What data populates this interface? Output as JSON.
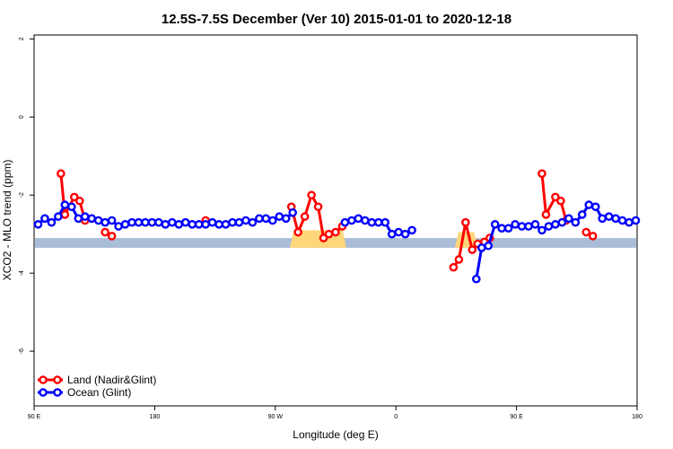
{
  "chart_data": {
    "type": "line",
    "title": "12.5S-7.5S December (Ver 10)   2015-01-01 to 2020-12-18",
    "xlabel": "Longitude (deg E)",
    "ylabel": "XCO2 - MLO trend (ppm)",
    "xlim": [
      90,
      540
    ],
    "ylim": [
      -7.4,
      2.1
    ],
    "x_ticks": [
      {
        "value": 90,
        "label": "90 E"
      },
      {
        "value": 180,
        "label": "180"
      },
      {
        "value": 270,
        "label": "90 W"
      },
      {
        "value": 360,
        "label": "0"
      },
      {
        "value": 450,
        "label": "90 E"
      },
      {
        "value": 540,
        "label": "180"
      }
    ],
    "y_ticks": [
      {
        "value": 2,
        "label": "2"
      },
      {
        "value": 0,
        "label": "0"
      },
      {
        "value": -2,
        "label": "-2"
      },
      {
        "value": -4,
        "label": "-4"
      },
      {
        "value": -6,
        "label": "-6"
      }
    ],
    "legend_position": "bottom-left",
    "land_band": {
      "y_top": -3.1,
      "y_bottom": -3.35,
      "color": "#A9BCD8"
    },
    "land_bumps": [
      {
        "x0": 281,
        "x1": 323,
        "peak": -2.9,
        "color": "#FFD77A"
      },
      {
        "x0": 404,
        "x1": 421,
        "peak": -2.95,
        "color": "#FFD77A"
      }
    ],
    "series": [
      {
        "name": "Land (Nadir&Glint)",
        "color": "#FF0000",
        "segments": [
          [
            [
              110,
              -1.45
            ],
            [
              113,
              -2.5
            ],
            [
              120,
              -2.05
            ],
            [
              124,
              -2.15
            ],
            [
              128,
              -2.65
            ]
          ],
          [
            [
              143,
              -2.95
            ],
            [
              148,
              -3.05
            ]
          ],
          [
            [
              218,
              -2.65
            ]
          ],
          [
            [
              282,
              -2.3
            ],
            [
              287,
              -2.95
            ],
            [
              292,
              -2.55
            ],
            [
              297,
              -2.0
            ],
            [
              302,
              -2.3
            ],
            [
              306,
              -3.1
            ],
            [
              310,
              -3.0
            ],
            [
              315,
              -2.95
            ],
            [
              320,
              -2.8
            ]
          ],
          [
            [
              403,
              -3.85
            ],
            [
              407,
              -3.65
            ],
            [
              412,
              -2.7
            ],
            [
              417,
              -3.4
            ],
            [
              421,
              -3.25
            ],
            [
              426,
              -3.2
            ],
            [
              430,
              -3.1
            ]
          ],
          [
            [
              469,
              -1.45
            ],
            [
              472,
              -2.5
            ],
            [
              479,
              -2.05
            ],
            [
              483,
              -2.15
            ],
            [
              487,
              -2.65
            ]
          ],
          [
            [
              502,
              -2.95
            ],
            [
              507,
              -3.05
            ]
          ]
        ]
      },
      {
        "name": "Ocean (Glint)",
        "color": "#0000FF",
        "segments": [
          [
            [
              93,
              -2.75
            ],
            [
              98,
              -2.6
            ],
            [
              103,
              -2.7
            ],
            [
              108,
              -2.55
            ],
            [
              113,
              -2.25
            ],
            [
              118,
              -2.3
            ],
            [
              123,
              -2.6
            ],
            [
              128,
              -2.55
            ],
            [
              133,
              -2.6
            ],
            [
              138,
              -2.65
            ],
            [
              143,
              -2.7
            ],
            [
              148,
              -2.65
            ],
            [
              153,
              -2.8
            ],
            [
              158,
              -2.75
            ],
            [
              163,
              -2.7
            ],
            [
              168,
              -2.7
            ],
            [
              173,
              -2.7
            ],
            [
              178,
              -2.7
            ],
            [
              183,
              -2.7
            ],
            [
              188,
              -2.75
            ],
            [
              193,
              -2.7
            ],
            [
              198,
              -2.75
            ],
            [
              203,
              -2.7
            ],
            [
              208,
              -2.75
            ],
            [
              213,
              -2.75
            ],
            [
              218,
              -2.75
            ],
            [
              223,
              -2.7
            ],
            [
              228,
              -2.75
            ],
            [
              233,
              -2.75
            ],
            [
              238,
              -2.7
            ],
            [
              243,
              -2.7
            ],
            [
              248,
              -2.65
            ],
            [
              253,
              -2.7
            ],
            [
              258,
              -2.6
            ],
            [
              263,
              -2.6
            ],
            [
              268,
              -2.65
            ],
            [
              273,
              -2.55
            ],
            [
              278,
              -2.6
            ],
            [
              283,
              -2.45
            ]
          ],
          [
            [
              322,
              -2.7
            ],
            [
              327,
              -2.65
            ],
            [
              332,
              -2.6
            ],
            [
              337,
              -2.65
            ],
            [
              342,
              -2.7
            ],
            [
              347,
              -2.7
            ],
            [
              352,
              -2.7
            ],
            [
              357,
              -3.0
            ],
            [
              362,
              -2.95
            ],
            [
              367,
              -3.0
            ],
            [
              372,
              -2.9
            ]
          ],
          [
            [
              420,
              -4.15
            ],
            [
              424,
              -3.35
            ],
            [
              429,
              -3.3
            ],
            [
              434,
              -2.75
            ],
            [
              439,
              -2.85
            ],
            [
              444,
              -2.85
            ],
            [
              449,
              -2.75
            ],
            [
              454,
              -2.8
            ],
            [
              459,
              -2.8
            ],
            [
              464,
              -2.75
            ],
            [
              469,
              -2.9
            ],
            [
              474,
              -2.8
            ],
            [
              479,
              -2.75
            ],
            [
              484,
              -2.7
            ],
            [
              489,
              -2.6
            ],
            [
              494,
              -2.7
            ],
            [
              499,
              -2.5
            ],
            [
              504,
              -2.25
            ],
            [
              509,
              -2.3
            ],
            [
              514,
              -2.6
            ],
            [
              519,
              -2.55
            ],
            [
              524,
              -2.6
            ],
            [
              529,
              -2.65
            ],
            [
              534,
              -2.7
            ],
            [
              539,
              -2.65
            ]
          ]
        ]
      }
    ]
  }
}
